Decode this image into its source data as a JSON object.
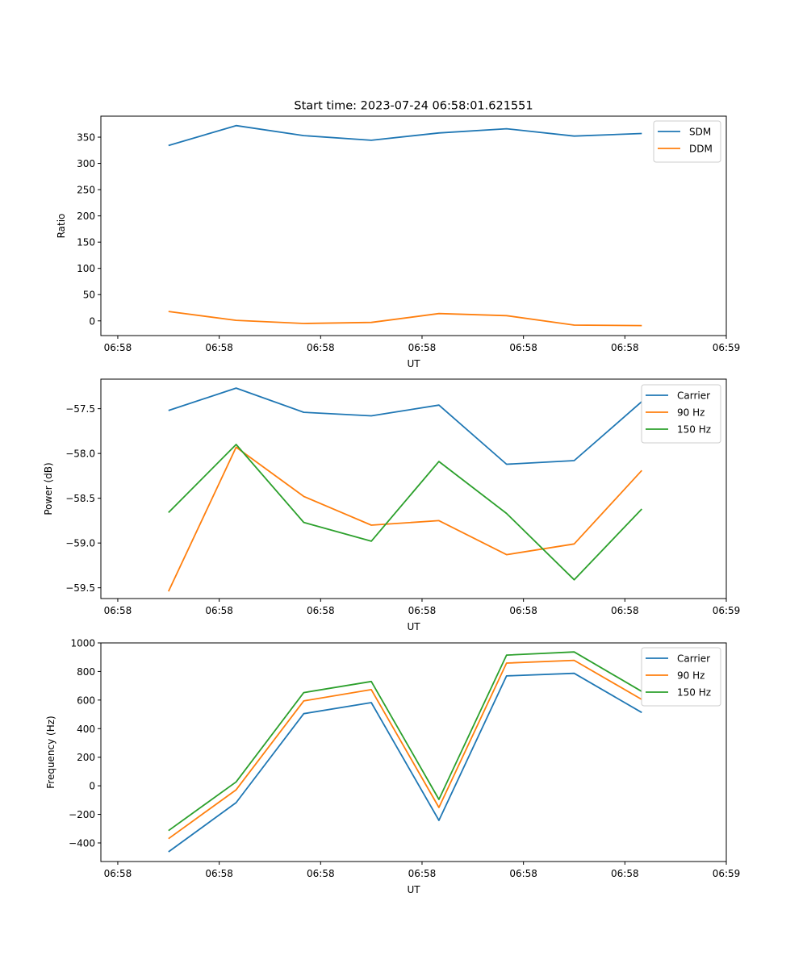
{
  "colors": {
    "blue": "#1f77b4",
    "orange": "#ff7f0e",
    "green": "#2ca02c"
  },
  "chart_data": [
    {
      "type": "line",
      "title": "Start time: 2023-07-24 06:58:01.621551",
      "xlabel": "UT",
      "ylabel": "Ratio",
      "x": [
        1,
        2,
        3,
        4,
        5,
        6,
        7,
        8
      ],
      "xlim": [
        0,
        9.25
      ],
      "xticks": [
        0.25,
        1.75,
        3.25,
        4.75,
        6.25,
        7.75,
        9.25
      ],
      "xtick_labels": [
        "06:58",
        "06:58",
        "06:58",
        "06:58",
        "06:58",
        "06:58",
        "06:59"
      ],
      "ylim": [
        -28,
        390
      ],
      "yticks": [
        0,
        50,
        100,
        150,
        200,
        250,
        300,
        350
      ],
      "ytick_labels": [
        "0",
        "50",
        "100",
        "150",
        "200",
        "250",
        "300",
        "350"
      ],
      "legend_position": "top-right",
      "series": [
        {
          "name": "SDM",
          "color": "#1f77b4",
          "values": [
            334,
            372,
            353,
            344,
            358,
            366,
            352,
            357
          ]
        },
        {
          "name": "DDM",
          "color": "#ff7f0e",
          "values": [
            18,
            1,
            -5,
            -3,
            14,
            10,
            -8,
            -9
          ]
        }
      ]
    },
    {
      "type": "line",
      "title": "",
      "xlabel": "UT",
      "ylabel": "Power (dB)",
      "x": [
        1,
        2,
        3,
        4,
        5,
        6,
        7,
        8
      ],
      "xlim": [
        0,
        9.25
      ],
      "xticks": [
        0.25,
        1.75,
        3.25,
        4.75,
        6.25,
        7.75,
        9.25
      ],
      "xtick_labels": [
        "06:58",
        "06:58",
        "06:58",
        "06:58",
        "06:58",
        "06:58",
        "06:59"
      ],
      "ylim": [
        -59.62,
        -57.17
      ],
      "yticks": [
        -59.5,
        -59.0,
        -58.5,
        -58.0,
        -57.5
      ],
      "ytick_labels": [
        "−59.5",
        "−59.0",
        "−58.5",
        "−58.0",
        "−57.5"
      ],
      "legend_position": "top-right",
      "series": [
        {
          "name": "Carrier",
          "color": "#1f77b4",
          "values": [
            -57.52,
            -57.27,
            -57.54,
            -57.58,
            -57.46,
            -58.12,
            -58.08,
            -57.42
          ]
        },
        {
          "name": "90 Hz",
          "color": "#ff7f0e",
          "values": [
            -59.54,
            -57.93,
            -58.48,
            -58.8,
            -58.75,
            -59.13,
            -59.01,
            -58.19
          ]
        },
        {
          "name": "150 Hz",
          "color": "#2ca02c",
          "values": [
            -58.66,
            -57.9,
            -58.77,
            -58.98,
            -58.09,
            -58.67,
            -59.41,
            -58.62
          ]
        }
      ]
    },
    {
      "type": "line",
      "title": "",
      "xlabel": "UT",
      "ylabel": "Frequency (Hz)",
      "x": [
        1,
        2,
        3,
        4,
        5,
        6,
        7,
        8
      ],
      "xlim": [
        0,
        9.25
      ],
      "xticks": [
        0.25,
        1.75,
        3.25,
        4.75,
        6.25,
        7.75,
        9.25
      ],
      "xtick_labels": [
        "06:58",
        "06:58",
        "06:58",
        "06:58",
        "06:58",
        "06:58",
        "06:59"
      ],
      "ylim": [
        -530,
        1000
      ],
      "yticks": [
        -400,
        -200,
        0,
        200,
        400,
        600,
        800,
        1000
      ],
      "ytick_labels": [
        "−400",
        "−200",
        "0",
        "200",
        "400",
        "600",
        "800",
        "1000"
      ],
      "legend_position": "top-right",
      "series": [
        {
          "name": "Carrier",
          "color": "#1f77b4",
          "values": [
            -462,
            -118,
            505,
            582,
            -242,
            769,
            787,
            513
          ]
        },
        {
          "name": "90 Hz",
          "color": "#ff7f0e",
          "values": [
            -370,
            -28,
            594,
            673,
            -152,
            859,
            878,
            604
          ]
        },
        {
          "name": "150 Hz",
          "color": "#2ca02c",
          "values": [
            -314,
            27,
            652,
            730,
            -95,
            915,
            937,
            660
          ]
        }
      ]
    }
  ]
}
